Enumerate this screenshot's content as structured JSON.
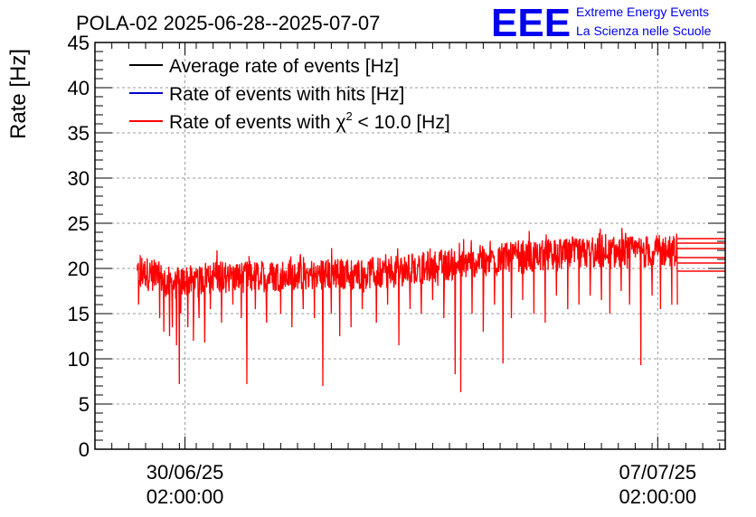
{
  "chart_data": {
    "type": "line",
    "title": "POLA-02 2025-06-28--2025-07-07",
    "ylabel": "Rate [Hz]",
    "xlabel": "",
    "ylim": [
      0,
      45
    ],
    "yticks": [
      0,
      5,
      10,
      15,
      20,
      25,
      30,
      35,
      40,
      45
    ],
    "xlim": [
      "2025-06-28 18:00",
      "2025-07-08 02:00"
    ],
    "xticks": [
      {
        "x": "2025-06-30 02:00",
        "date": "30/06/25",
        "time": "02:00:00"
      },
      {
        "x": "2025-07-07 02:00",
        "date": "07/07/25",
        "time": "02:00:00"
      }
    ],
    "grid": true,
    "legend_position": "top-left",
    "series": [
      {
        "name": "Average rate of events [Hz]",
        "color": "#000000"
      },
      {
        "name": "Rate of events with hits [Hz]",
        "color": "#0000cc"
      },
      {
        "name_prefix": "Rate of events with ",
        "name_symbol": "χ",
        "name_sup": "2",
        "name_suffix": " < 10.0 [Hz]",
        "color": "#ff0000",
        "data_start": "2025-06-29 09:00",
        "data_end": "2025-07-07 09:00",
        "baseline": [
          [
            "2025-06-29 09:00",
            19.2
          ],
          [
            "2025-06-29 12:00",
            19.6
          ],
          [
            "2025-06-29 18:00",
            18.8
          ],
          [
            "2025-06-29 22:00",
            18.2
          ],
          [
            "2025-06-30 03:00",
            18.7
          ],
          [
            "2025-06-30 06:00",
            18.3
          ],
          [
            "2025-06-30 10:00",
            19.3
          ],
          [
            "2025-06-30 18:00",
            19.0
          ],
          [
            "2025-07-01 02:00",
            19.1
          ],
          [
            "2025-07-01 18:00",
            19.3
          ],
          [
            "2025-07-02 12:00",
            19.4
          ],
          [
            "2025-07-03 04:00",
            19.6
          ],
          [
            "2025-07-03 18:00",
            20.2
          ],
          [
            "2025-07-04 12:00",
            20.9
          ],
          [
            "2025-07-05 06:00",
            21.3
          ],
          [
            "2025-07-06 00:00",
            21.6
          ],
          [
            "2025-07-06 18:00",
            21.8
          ],
          [
            "2025-07-07 09:00",
            22.0
          ]
        ],
        "dips": [
          [
            "2025-06-29 09:30",
            16.0
          ],
          [
            "2025-06-29 13:00",
            17.5
          ],
          [
            "2025-06-29 17:00",
            14.5
          ],
          [
            "2025-06-29 18:30",
            13.0
          ],
          [
            "2025-06-29 20:30",
            12.5
          ],
          [
            "2025-06-29 21:30",
            13.5
          ],
          [
            "2025-06-29 23:00",
            11.5
          ],
          [
            "2025-06-30 00:00",
            7.2
          ],
          [
            "2025-06-30 00:30",
            15.0
          ],
          [
            "2025-06-30 03:00",
            13.5
          ],
          [
            "2025-06-30 05:00",
            12.0
          ],
          [
            "2025-06-30 07:00",
            14.5
          ],
          [
            "2025-06-30 09:00",
            11.8
          ],
          [
            "2025-06-30 11:00",
            15.5
          ],
          [
            "2025-06-30 15:00",
            14.0
          ],
          [
            "2025-06-30 19:00",
            16.0
          ],
          [
            "2025-06-30 22:00",
            14.5
          ],
          [
            "2025-07-01 00:00",
            7.2
          ],
          [
            "2025-07-01 03:00",
            15.5
          ],
          [
            "2025-07-01 07:00",
            14.0
          ],
          [
            "2025-07-01 12:00",
            15.0
          ],
          [
            "2025-07-01 16:00",
            13.5
          ],
          [
            "2025-07-01 20:00",
            15.5
          ],
          [
            "2025-07-02 00:00",
            14.5
          ],
          [
            "2025-07-02 03:00",
            7.0
          ],
          [
            "2025-07-02 06:00",
            15.0
          ],
          [
            "2025-07-02 09:00",
            12.5
          ],
          [
            "2025-07-02 13:00",
            13.5
          ],
          [
            "2025-07-02 17:00",
            15.5
          ],
          [
            "2025-07-02 22:00",
            14.0
          ],
          [
            "2025-07-03 02:00",
            16.0
          ],
          [
            "2025-07-03 06:00",
            11.5
          ],
          [
            "2025-07-03 10:00",
            15.5
          ],
          [
            "2025-07-03 14:00",
            15.0
          ],
          [
            "2025-07-03 18:00",
            16.5
          ],
          [
            "2025-07-03 22:00",
            14.5
          ],
          [
            "2025-07-04 02:00",
            8.3
          ],
          [
            "2025-07-04 04:00",
            6.3
          ],
          [
            "2025-07-04 08:00",
            15.0
          ],
          [
            "2025-07-04 12:00",
            13.0
          ],
          [
            "2025-07-04 16:00",
            16.0
          ],
          [
            "2025-07-04 19:00",
            9.5
          ],
          [
            "2025-07-04 22:00",
            14.5
          ],
          [
            "2025-07-05 02:00",
            16.5
          ],
          [
            "2025-07-05 06:00",
            15.0
          ],
          [
            "2025-07-05 10:00",
            14.0
          ],
          [
            "2025-07-05 14:00",
            17.0
          ],
          [
            "2025-07-05 18:00",
            15.5
          ],
          [
            "2025-07-05 22:00",
            16.0
          ],
          [
            "2025-07-06 02:00",
            17.0
          ],
          [
            "2025-07-06 06:00",
            16.5
          ],
          [
            "2025-07-06 09:00",
            15.0
          ],
          [
            "2025-07-06 13:00",
            17.5
          ],
          [
            "2025-07-06 16:00",
            16.0
          ],
          [
            "2025-07-06 20:00",
            9.3
          ],
          [
            "2025-07-07 00:00",
            17.0
          ],
          [
            "2025-07-07 03:00",
            15.5
          ],
          [
            "2025-07-07 07:00",
            16.0
          ],
          [
            "2025-07-07 09:00",
            16.0
          ]
        ],
        "tails": [
          23.3,
          22.8,
          22.2,
          21.2,
          20.6,
          19.7
        ]
      }
    ]
  },
  "logo": {
    "letters": "EEE",
    "line1": "Extreme Energy Events",
    "line2": "La Scienza nelle Scuole",
    "color": "#0000ee"
  }
}
